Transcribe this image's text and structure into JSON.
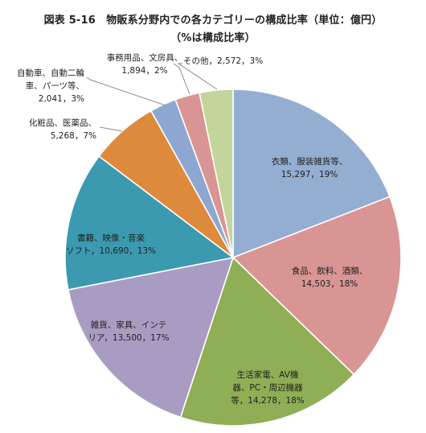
{
  "chart_data": {
    "type": "pie",
    "title": "図表 5-16　物販系分野内での各カテゴリーの構成比率（単位：億円）",
    "subtitle": "（%は構成比率）",
    "legend": "none",
    "slices": [
      {
        "name": "衣類、服装雑貨等",
        "value": 15297,
        "percent": "19%",
        "color": "#94AED2",
        "label_lines": [
          "衣類、服装雑貨等、",
          "15,297，19%"
        ]
      },
      {
        "name": "食品、飲料、酒類",
        "value": 14503,
        "percent": "18%",
        "color": "#D99593",
        "label_lines": [
          "食品、飲料、酒類、",
          "14,503，18%"
        ]
      },
      {
        "name": "生活家電、AV機器、PC・周辺機器等",
        "value": 14278,
        "percent": "18%",
        "color": "#8FAE55",
        "label_lines": [
          "生活家電、AV機",
          "器、PC・周辺機器",
          "等，14,278，18%"
        ]
      },
      {
        "name": "雑貨、家具、インテリア",
        "value": 13500,
        "percent": "17%",
        "color": "#A99CC3",
        "label_lines": [
          "雑貨、家具、インテ",
          "リア，13,500，17%"
        ]
      },
      {
        "name": "書籍、映像・音楽ソフト",
        "value": 10690,
        "percent": "13%",
        "color": "#3B9AAF",
        "label_lines": [
          "書籍、映像・音楽",
          "ソフト，10,690，13%"
        ]
      },
      {
        "name": "化粧品、医薬品",
        "value": 5268,
        "percent": "7%",
        "color": "#DD8A3C",
        "label_lines": [
          "化粧品、医薬品、",
          "5,268，7%"
        ]
      },
      {
        "name": "自動車、自動二輪車、パーツ等",
        "value": 2041,
        "percent": "3%",
        "color": "#8EA7D2",
        "label_lines": [
          "自動車、自動二輪",
          "車、パーツ等、",
          "2,041，3%"
        ]
      },
      {
        "name": "事務用品、文房具",
        "value": 1894,
        "percent": "2%",
        "color": "#D99593",
        "label_lines": [
          "事務用品、文房具、",
          "1,894，2%"
        ]
      },
      {
        "name": "その他",
        "value": 2572,
        "percent": "3%",
        "color": "#C3D59B",
        "label_lines": [
          "その他，2,572，3%"
        ]
      }
    ]
  }
}
